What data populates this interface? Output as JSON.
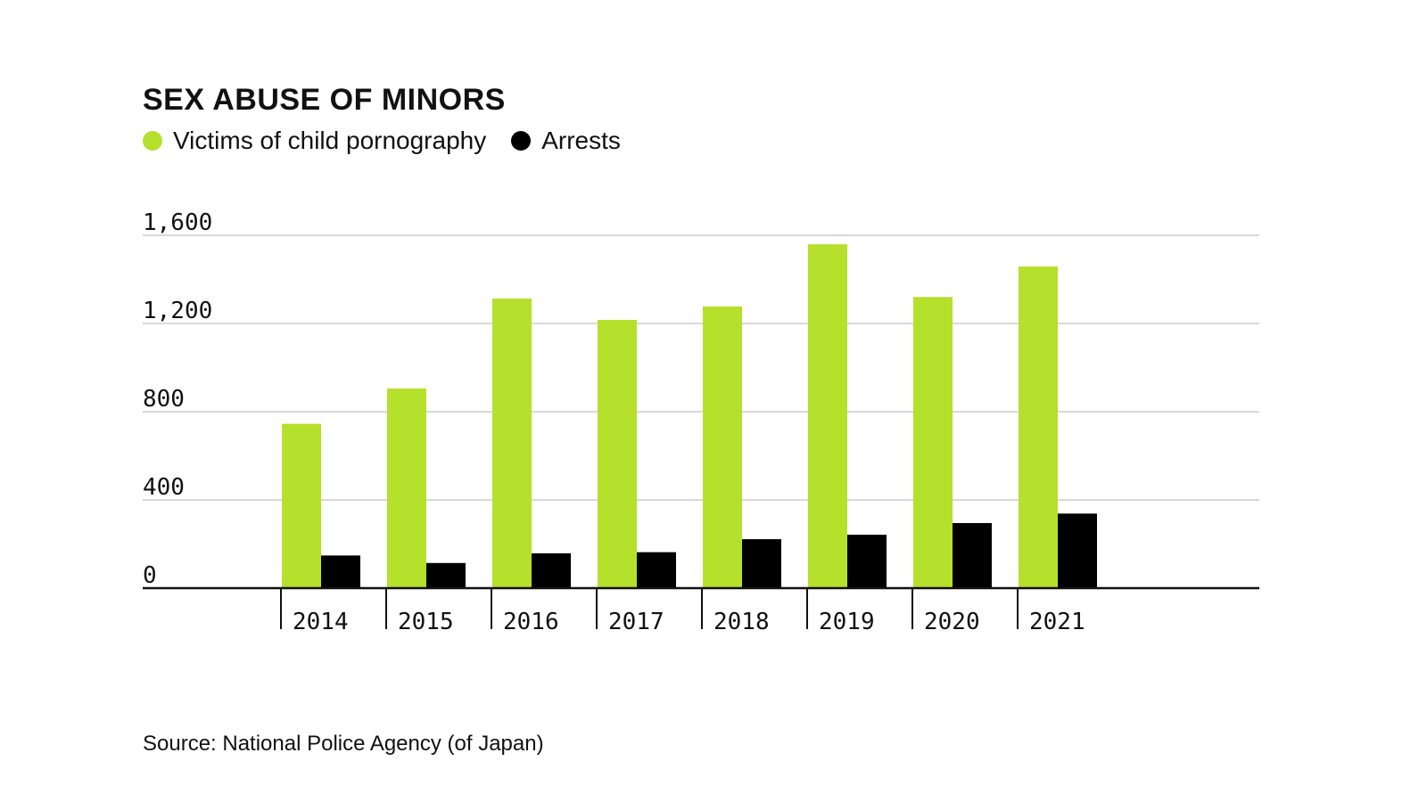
{
  "chart_data": {
    "type": "bar",
    "title": "SEX ABUSE OF MINORS",
    "categories": [
      "2014",
      "2015",
      "2016",
      "2017",
      "2018",
      "2019",
      "2020",
      "2021"
    ],
    "series": [
      {
        "name": "Victims of child pornography",
        "color": "#b5e02c",
        "values": [
          745,
          905,
          1313,
          1216,
          1277,
          1559,
          1320,
          1458
        ]
      },
      {
        "name": "Arrests",
        "color": "#000000",
        "values": [
          148,
          114,
          158,
          163,
          222,
          242,
          295,
          338
        ]
      }
    ],
    "yticks": [
      "0",
      "400",
      "800",
      "1,200",
      "1,600"
    ],
    "ylim": [
      0,
      1600
    ],
    "grid": true,
    "legend_position": "top-left"
  },
  "source": "Source: National Police Agency (of Japan)"
}
